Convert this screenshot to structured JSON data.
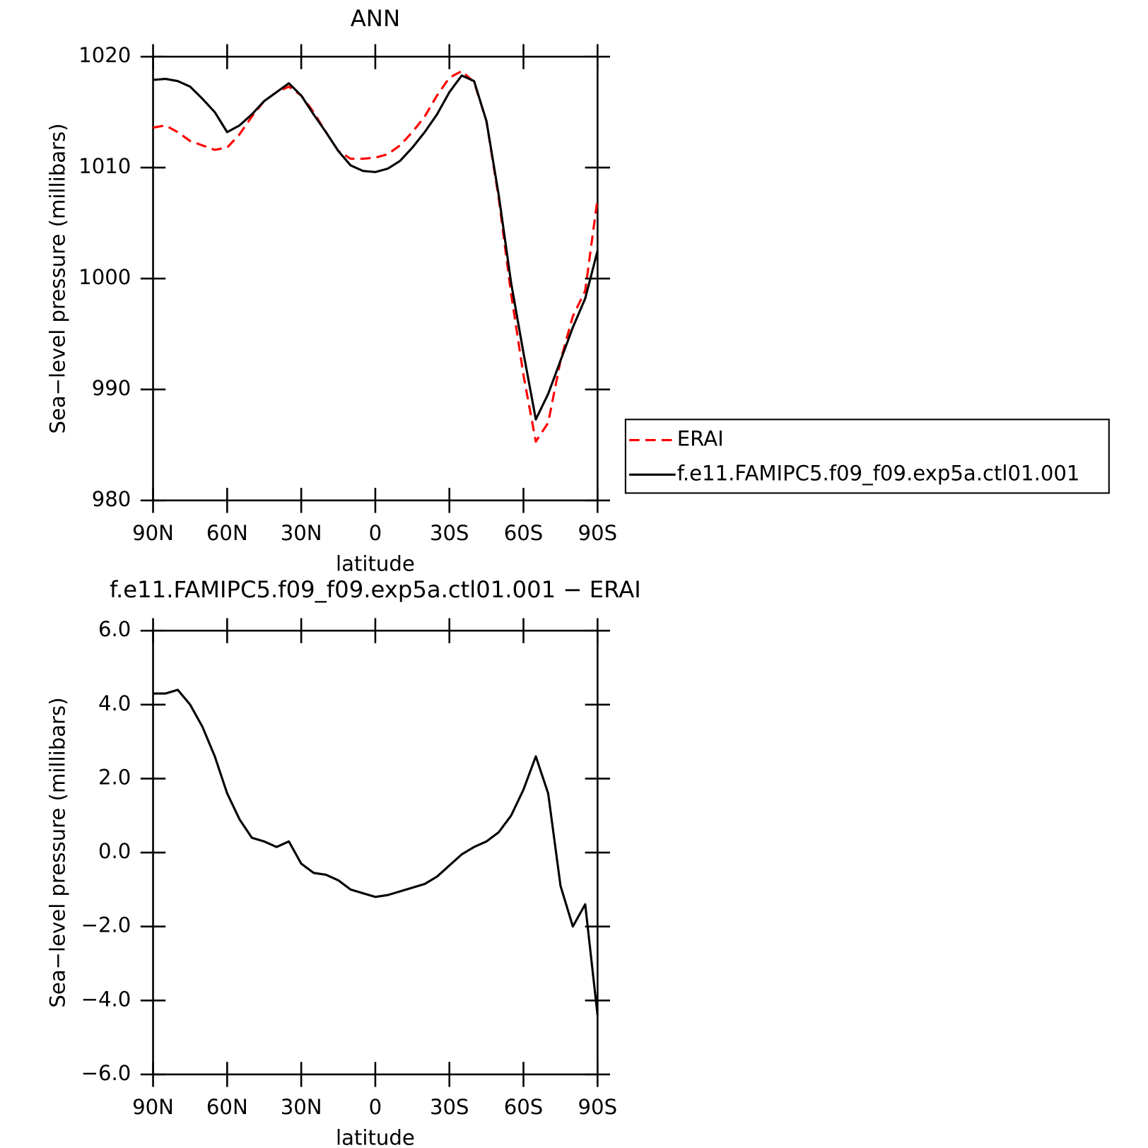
{
  "chart_data": [
    {
      "type": "line",
      "title": "ANN",
      "x_label": "latitude",
      "y_label": "Sea−level pressure (millibars)",
      "x": [
        90,
        85,
        80,
        75,
        70,
        65,
        60,
        55,
        50,
        45,
        40,
        35,
        30,
        25,
        20,
        15,
        10,
        5,
        0,
        -5,
        -10,
        -15,
        -20,
        -25,
        -30,
        -35,
        -40,
        -45,
        -50,
        -55,
        -60,
        -65,
        -70,
        -75,
        -80,
        -85,
        -90
      ],
      "xlim": [
        90,
        -90
      ],
      "xticks": [
        {
          "value": 90,
          "label": "90N"
        },
        {
          "value": 60,
          "label": "60N"
        },
        {
          "value": 30,
          "label": "30N"
        },
        0,
        {
          "value": -30,
          "label": "30S"
        },
        {
          "value": -60,
          "label": "60S"
        },
        {
          "value": -90,
          "label": "90S"
        }
      ],
      "ylim": [
        980,
        1020
      ],
      "yticks": [
        980,
        990,
        1000,
        1010,
        1020
      ],
      "legend": "right",
      "series": [
        {
          "name": "ERAI",
          "color": "#ff0000",
          "line_style": "dashed",
          "values": [
            1013.6,
            1013.8,
            1013.2,
            1012.4,
            1012.0,
            1011.6,
            1011.8,
            1013.0,
            1014.6,
            1016.0,
            1016.8,
            1017.3,
            1016.5,
            1015.0,
            1013.2,
            1011.5,
            1010.8,
            1010.8,
            1010.9,
            1011.2,
            1012.0,
            1013.2,
            1014.6,
            1016.5,
            1018.1,
            1018.7,
            1017.7,
            1014.2,
            1007.2,
            998.6,
            991.3,
            985.3,
            987.0,
            992.6,
            996.6,
            998.9,
            1007.2
          ]
        },
        {
          "name": "f.e11.FAMIPC5.f09_f09.exp5a.ctl01.001",
          "color": "#000000",
          "line_style": "solid",
          "values": [
            1017.9,
            1018.0,
            1017.8,
            1017.3,
            1016.2,
            1015.0,
            1013.2,
            1013.8,
            1014.8,
            1016.0,
            1016.8,
            1017.6,
            1016.5,
            1014.8,
            1013.2,
            1011.5,
            1010.2,
            1009.7,
            1009.6,
            1009.9,
            1010.6,
            1011.8,
            1013.2,
            1014.8,
            1016.8,
            1018.3,
            1017.8,
            1014.2,
            1007.5,
            999.6,
            993.3,
            987.3,
            989.6,
            992.6,
            995.6,
            998.2,
            1002.5
          ]
        }
      ]
    },
    {
      "type": "line",
      "title": "f.e11.FAMIPC5.f09_f09.exp5a.ctl01.001  −  ERAI",
      "x_label": "latitude",
      "y_label": "Sea−level pressure (millibars)",
      "x": [
        90,
        85,
        80,
        75,
        70,
        65,
        60,
        55,
        50,
        45,
        40,
        35,
        30,
        25,
        20,
        15,
        10,
        5,
        0,
        -5,
        -10,
        -15,
        -20,
        -25,
        -30,
        -35,
        -40,
        -45,
        -50,
        -55,
        -60,
        -65,
        -70,
        -75,
        -80,
        -85,
        -90
      ],
      "xlim": [
        90,
        -90
      ],
      "xticks": [
        {
          "value": 90,
          "label": "90N"
        },
        {
          "value": 60,
          "label": "60N"
        },
        {
          "value": 30,
          "label": "30N"
        },
        0,
        {
          "value": -30,
          "label": "30S"
        },
        {
          "value": -60,
          "label": "60S"
        },
        {
          "value": -90,
          "label": "90S"
        }
      ],
      "ylim": [
        -6,
        6
      ],
      "yticks": [
        {
          "value": -6,
          "label": "−6.0"
        },
        {
          "value": -4,
          "label": "−4.0"
        },
        {
          "value": -2,
          "label": "−2.0"
        },
        {
          "value": 0,
          "label": "0.0"
        },
        {
          "value": 2,
          "label": "2.0"
        },
        {
          "value": 4,
          "label": "4.0"
        },
        {
          "value": 6,
          "label": "6.0"
        }
      ],
      "color": "#000000",
      "values": [
        4.3,
        4.3,
        4.4,
        4.0,
        3.4,
        2.6,
        1.6,
        0.9,
        0.4,
        0.3,
        0.15,
        0.3,
        -0.3,
        -0.55,
        -0.6,
        -0.75,
        -1.0,
        -1.1,
        -1.2,
        -1.15,
        -1.05,
        -0.95,
        -0.85,
        -0.65,
        -0.35,
        -0.05,
        0.15,
        0.3,
        0.55,
        1.0,
        1.7,
        2.6,
        1.6,
        -0.9,
        -2.0,
        -1.4,
        -4.4
      ]
    }
  ]
}
